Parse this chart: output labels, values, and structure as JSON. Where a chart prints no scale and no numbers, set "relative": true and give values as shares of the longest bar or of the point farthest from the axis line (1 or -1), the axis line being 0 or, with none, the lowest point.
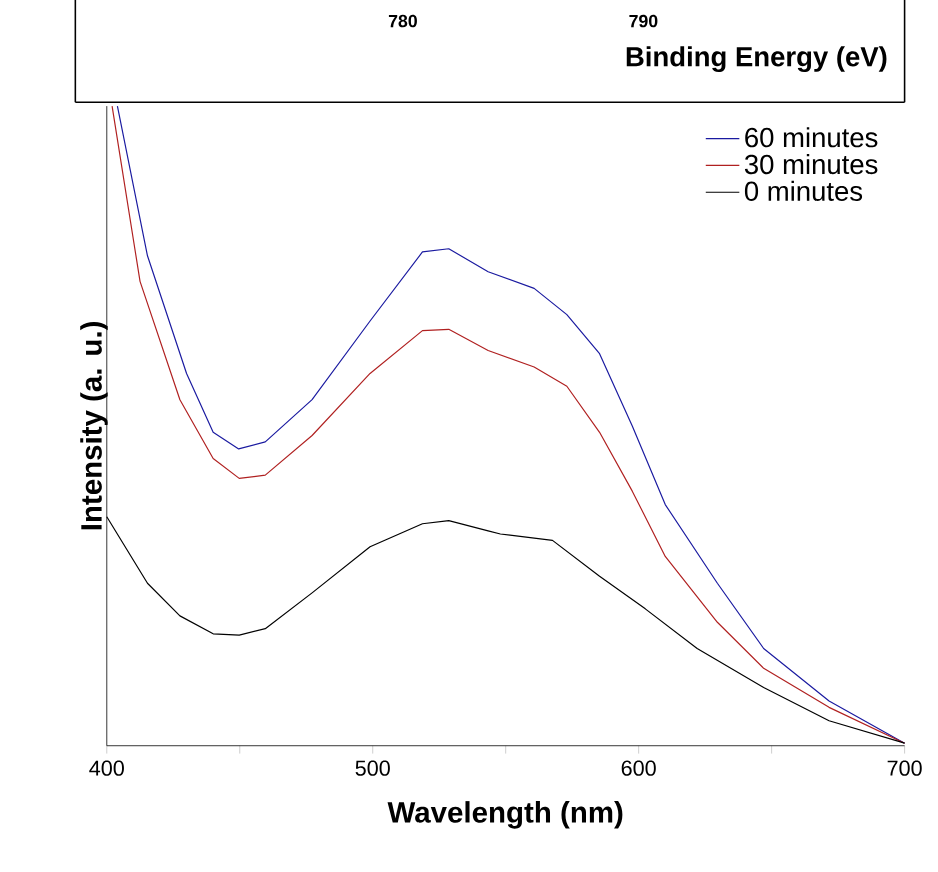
{
  "chart_data": [
    {
      "type": "other",
      "xlabel": "Binding Energy (eV)",
      "annotations": [
        "780",
        "790"
      ]
    },
    {
      "type": "line",
      "xlabel": "Wavelength (nm)",
      "ylabel": "Intensity (a. u.)",
      "relative": true,
      "legend": "top right",
      "xlim": [
        400,
        700
      ],
      "xticks": [
        400,
        {
          "value": 450,
          "label": null
        },
        500,
        {
          "value": 550,
          "label": null
        },
        600,
        {
          "value": 650,
          "label": null
        },
        700
      ],
      "series": [
        {
          "name": "60 minutes",
          "color": "#1a1aa0",
          "x": [
            404,
            415.3,
            430,
            440,
            449.6,
            459.6,
            477.2,
            499,
            518.7,
            528.6,
            543.4,
            560.7,
            573,
            585.3,
            597.6,
            610,
            629.6,
            647,
            671.6,
            700
          ],
          "values": [
            1.0,
            0.766,
            0.582,
            0.49,
            0.464,
            0.475,
            0.541,
            0.664,
            0.772,
            0.777,
            0.741,
            0.715,
            0.674,
            0.613,
            0.5,
            0.377,
            0.254,
            0.152,
            0.07,
            0.004
          ]
        },
        {
          "name": "30 minutes",
          "color": "#b02020",
          "x": [
            402,
            412.5,
            427.5,
            440,
            449.8,
            459.6,
            477.2,
            499,
            518.7,
            528.6,
            543.4,
            560.7,
            573,
            585.3,
            597.6,
            610,
            629.6,
            647,
            671.6,
            700
          ],
          "values": [
            1.0,
            0.726,
            0.541,
            0.449,
            0.418,
            0.423,
            0.485,
            0.582,
            0.649,
            0.651,
            0.618,
            0.592,
            0.562,
            0.49,
            0.398,
            0.296,
            0.193,
            0.121,
            0.06,
            0.004
          ]
        },
        {
          "name": "0 minutes",
          "color": "#000000",
          "x": [
            400,
            415.3,
            427.5,
            440,
            449.8,
            459.6,
            477.2,
            499,
            518.7,
            528.6,
            543.4,
            548,
            567.6,
            585.3,
            602.5,
            622,
            647,
            671.6,
            700
          ],
          "values": [
            0.358,
            0.254,
            0.203,
            0.175,
            0.173,
            0.183,
            0.239,
            0.311,
            0.347,
            0.352,
            0.336,
            0.331,
            0.321,
            0.265,
            0.214,
            0.152,
            0.091,
            0.039,
            0.004
          ]
        }
      ]
    }
  ]
}
